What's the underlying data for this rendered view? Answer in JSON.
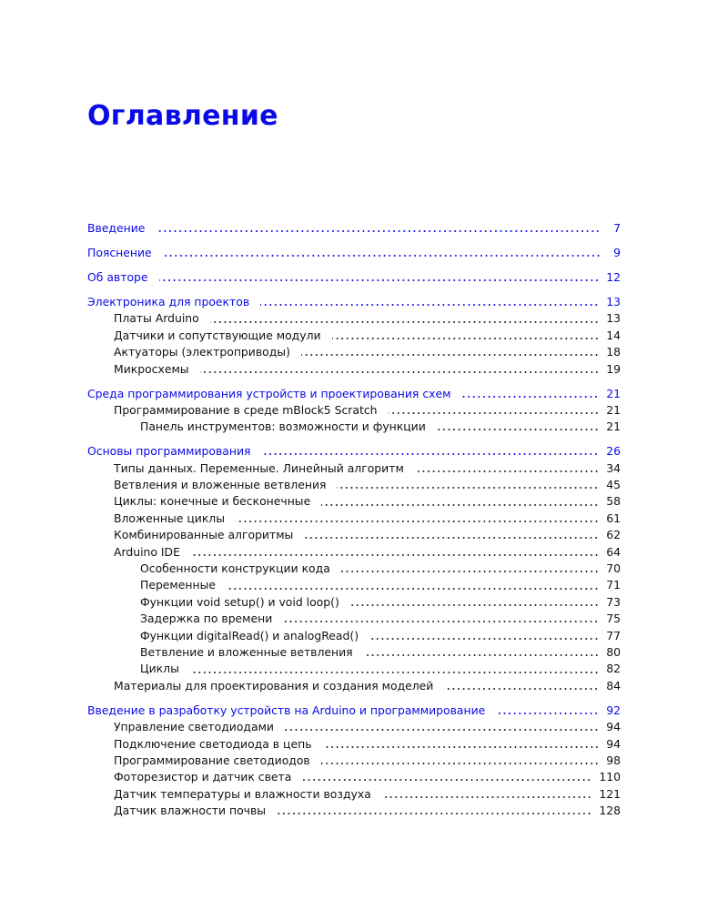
{
  "title": "Оглавление",
  "accent_color": "#0a0ae6",
  "groups": [
    {
      "entries": [
        {
          "level": 0,
          "label": "Введение",
          "page": "7"
        }
      ]
    },
    {
      "entries": [
        {
          "level": 0,
          "label": "Пояснение",
          "page": "9"
        }
      ]
    },
    {
      "entries": [
        {
          "level": 0,
          "label": "Об авторе",
          "page": "12"
        }
      ]
    },
    {
      "entries": [
        {
          "level": 0,
          "label": "Электроника для проектов",
          "page": "13"
        },
        {
          "level": 1,
          "label": "Платы Arduino",
          "page": "13"
        },
        {
          "level": 1,
          "label": "Датчики и сопутствующие модули",
          "page": "14"
        },
        {
          "level": 1,
          "label": "Актуаторы (электроприводы)",
          "page": "18"
        },
        {
          "level": 1,
          "label": "Микросхемы",
          "page": "19"
        }
      ]
    },
    {
      "entries": [
        {
          "level": 0,
          "label": "Среда программирования устройств и проектирования схем",
          "page": "21"
        },
        {
          "level": 1,
          "label": "Программирование в среде mBlock5 Scratch",
          "page": "21"
        },
        {
          "level": 2,
          "label": "Панель инструментов: возможности и функции",
          "page": "21"
        }
      ]
    },
    {
      "entries": [
        {
          "level": 0,
          "label": "Основы программирования",
          "page": "26"
        },
        {
          "level": 1,
          "label": "Типы данных. Переменные. Линейный алгоритм",
          "page": "34"
        },
        {
          "level": 1,
          "label": "Ветвления и вложенные ветвления",
          "page": "45"
        },
        {
          "level": 1,
          "label": "Циклы: конечные и бесконечные",
          "page": "58"
        },
        {
          "level": 1,
          "label": "Вложенные циклы",
          "page": "61"
        },
        {
          "level": 1,
          "label": "Комбинированные алгоритмы",
          "page": "62"
        },
        {
          "level": 1,
          "label": "Arduino IDE",
          "page": "64"
        },
        {
          "level": 2,
          "label": "Особенности конструкции кода",
          "page": "70"
        },
        {
          "level": 2,
          "label": "Переменные",
          "page": "71"
        },
        {
          "level": 2,
          "label": "Функции void setup() и void loop()",
          "page": "73"
        },
        {
          "level": 2,
          "label": "Задержка по времени",
          "page": "75"
        },
        {
          "level": 2,
          "label": "Функции digitalRead() и analogRead()",
          "page": "77"
        },
        {
          "level": 2,
          "label": "Ветвление и вложенные ветвления",
          "page": "80"
        },
        {
          "level": 2,
          "label": "Циклы",
          "page": "82"
        },
        {
          "level": 1,
          "label": "Материалы для проектирования и создания моделей",
          "page": "84"
        }
      ]
    },
    {
      "entries": [
        {
          "level": 0,
          "label": "Введение в разработку устройств на Arduino и программирование",
          "page": "92"
        },
        {
          "level": 1,
          "label": "Управление светодиодами",
          "page": "94"
        },
        {
          "level": 1,
          "label": "Подключение светодиода в цепь",
          "page": "94"
        },
        {
          "level": 1,
          "label": "Программирование светодиодов",
          "page": "98"
        },
        {
          "level": 1,
          "label": "Фоторезистор и датчик света",
          "page": "110"
        },
        {
          "level": 1,
          "label": "Датчик температуры и влажности воздуха",
          "page": "121"
        },
        {
          "level": 1,
          "label": "Датчик влажности почвы",
          "page": "128"
        }
      ]
    }
  ]
}
